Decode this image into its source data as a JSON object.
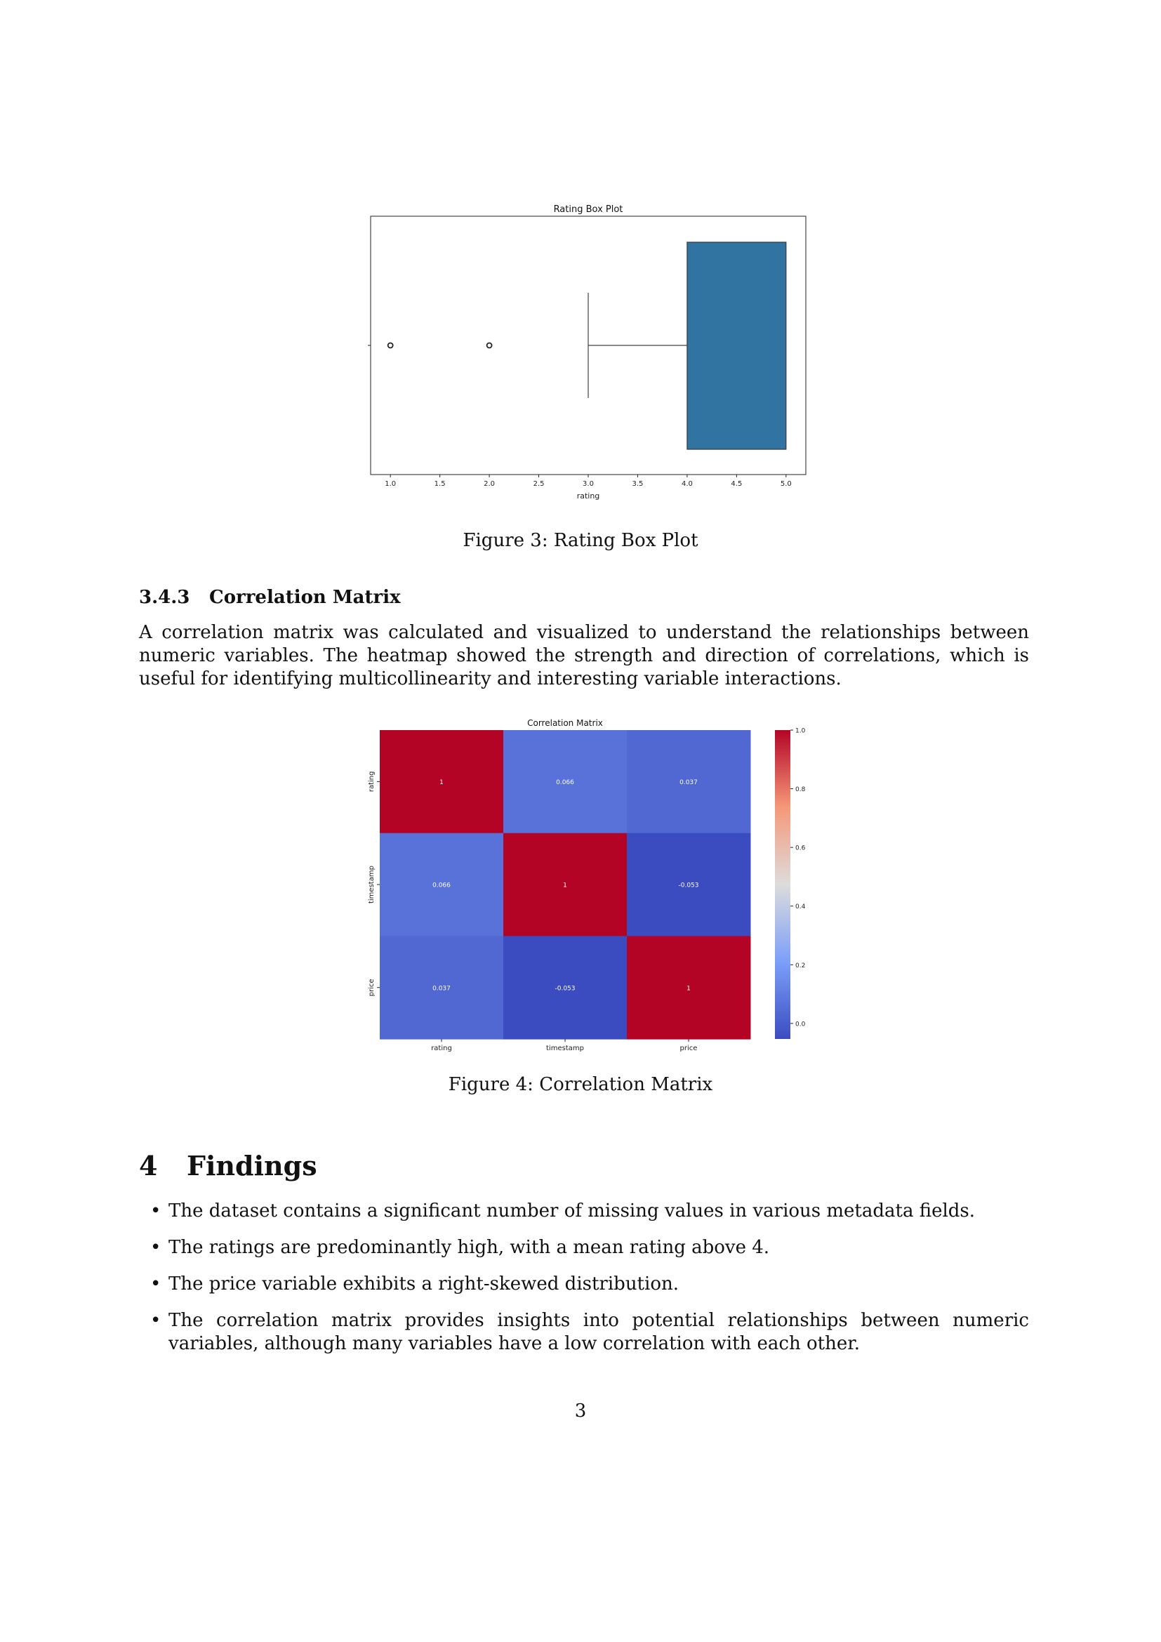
{
  "figure3": {
    "caption": "Figure 3: Rating Box Plot",
    "chart_data": {
      "type": "box",
      "title": "Rating Box Plot",
      "xlabel": "rating",
      "xlim": [
        0.8,
        5.2
      ],
      "xticks": [
        "1.0",
        "1.5",
        "2.0",
        "2.5",
        "3.0",
        "3.5",
        "4.0",
        "4.5",
        "5.0"
      ],
      "whisker_low": 3.0,
      "q1": 4.0,
      "median": 5.0,
      "q3": 5.0,
      "whisker_high": 5.0,
      "outliers": [
        1.0,
        2.0
      ],
      "box_color": "#3274a1"
    }
  },
  "section_343": {
    "number": "3.4.3",
    "title": "Correlation Matrix",
    "paragraph": "A correlation matrix was calculated and visualized to understand the relationships between numeric variables. The heatmap showed the strength and direction of correlations, which is useful for identifying multicollinearity and interesting variable interactions."
  },
  "figure4": {
    "caption": "Figure 4: Correlation Matrix",
    "chart_data": {
      "type": "heatmap",
      "title": "Correlation Matrix",
      "labels": [
        "rating",
        "timestamp",
        "price"
      ],
      "matrix": [
        [
          1,
          0.066,
          0.037
        ],
        [
          0.066,
          1,
          -0.053
        ],
        [
          0.037,
          -0.053,
          1
        ]
      ],
      "cell_text": [
        [
          "1",
          "0.066",
          "0.037"
        ],
        [
          "0.066",
          "1",
          "-0.053"
        ],
        [
          "0.037",
          "-0.053",
          "1"
        ]
      ],
      "colormap": "coolwarm",
      "colorbar_range": [
        -0.053,
        1.0
      ],
      "colorbar_ticks": [
        "0.0",
        "0.2",
        "0.4",
        "0.6",
        "0.8",
        "1.0"
      ]
    }
  },
  "section_4": {
    "number": "4",
    "title": "Findings",
    "bullets": [
      "The dataset contains a significant number of missing values in various metadata fields.",
      "The ratings are predominantly high, with a mean rating above 4.",
      "The price variable exhibits a right-skewed distribution.",
      "The correlation matrix provides insights into potential relationships between numeric variables, although many variables have a low correlation with each other."
    ]
  },
  "page_number": "3"
}
